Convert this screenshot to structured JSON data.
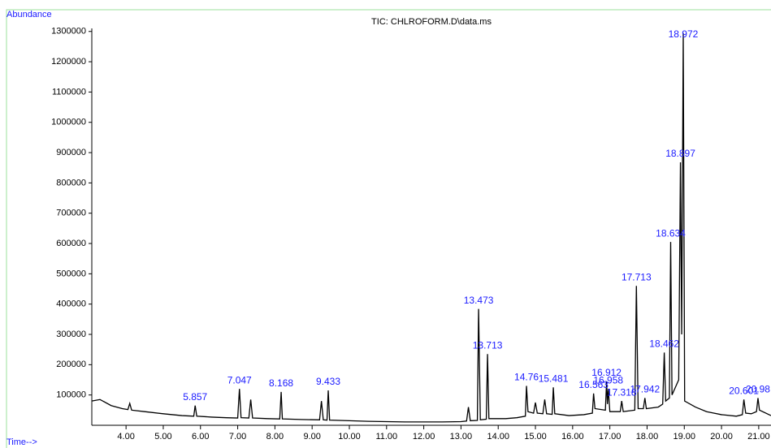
{
  "chart_data": {
    "type": "line",
    "title": "TIC: CHLROFORM.D\\data.ms",
    "y_label": "Abundance",
    "x_label": "Time-->",
    "color": "#000000",
    "label_color": "#1a1aff",
    "xlim": [
      3.08,
      21.33
    ],
    "ylim": [
      0,
      1310000
    ],
    "xticks": [
      {
        "value": 4,
        "label": "4.00"
      },
      {
        "value": 5,
        "label": "5.00"
      },
      {
        "value": 6,
        "label": "6.00"
      },
      {
        "value": 7,
        "label": "7.00"
      },
      {
        "value": 8,
        "label": "8.00"
      },
      {
        "value": 9,
        "label": "9.00"
      },
      {
        "value": 10,
        "label": "10.00"
      },
      {
        "value": 11,
        "label": "11.00"
      },
      {
        "value": 12,
        "label": "12.00"
      },
      {
        "value": 13,
        "label": "13.00"
      },
      {
        "value": 14,
        "label": "14.00"
      },
      {
        "value": 15,
        "label": "15.00"
      },
      {
        "value": 16,
        "label": "16.00"
      },
      {
        "value": 17,
        "label": "17.00"
      },
      {
        "value": 18,
        "label": "18.00"
      },
      {
        "value": 19,
        "label": "19.00"
      },
      {
        "value": 20,
        "label": "20.00"
      },
      {
        "value": 21,
        "label": "21.00"
      }
    ],
    "yticks": [
      100000,
      200000,
      300000,
      400000,
      500000,
      600000,
      700000,
      800000,
      900000,
      1000000,
      1100000,
      1200000,
      1300000
    ],
    "x": [
      3.08,
      3.3,
      3.6,
      3.9,
      4.05,
      4.1,
      4.15,
      4.5,
      5.0,
      5.5,
      5.82,
      5.857,
      5.9,
      6.3,
      6.7,
      7.0,
      7.047,
      7.09,
      7.3,
      7.35,
      7.4,
      7.8,
      8.13,
      8.168,
      8.2,
      8.7,
      9.2,
      9.25,
      9.3,
      9.4,
      9.433,
      9.47,
      10.0,
      10.5,
      11.0,
      11.5,
      12.0,
      12.5,
      13.0,
      13.15,
      13.2,
      13.25,
      13.44,
      13.473,
      13.52,
      13.68,
      13.713,
      13.75,
      14.2,
      14.5,
      14.73,
      14.76,
      14.8,
      14.95,
      15.0,
      15.05,
      15.2,
      15.25,
      15.3,
      15.45,
      15.481,
      15.52,
      15.9,
      16.3,
      16.53,
      16.563,
      16.6,
      16.88,
      16.912,
      16.935,
      16.958,
      17.0,
      17.28,
      17.318,
      17.36,
      17.67,
      17.713,
      17.76,
      17.9,
      17.942,
      17.98,
      18.3,
      18.42,
      18.462,
      18.5,
      18.6,
      18.634,
      18.67,
      18.85,
      18.897,
      18.93,
      18.972,
      19.01,
      19.3,
      19.6,
      20.0,
      20.4,
      20.56,
      20.601,
      20.65,
      20.8,
      20.94,
      20.98,
      21.02,
      21.33
    ],
    "values": [
      80000,
      85000,
      65000,
      55000,
      52000,
      72000,
      50000,
      45000,
      38000,
      32000,
      30000,
      65000,
      30000,
      27000,
      25000,
      24000,
      120000,
      25000,
      24000,
      85000,
      24000,
      22000,
      21000,
      110000,
      21000,
      19000,
      18000,
      80000,
      18000,
      17000,
      115000,
      17000,
      15000,
      13000,
      12000,
      11000,
      11000,
      11000,
      12000,
      14000,
      60000,
      15000,
      16000,
      384000,
      18000,
      20000,
      235000,
      22000,
      22000,
      25000,
      30000,
      130000,
      45000,
      40000,
      75000,
      40000,
      38000,
      85000,
      38000,
      36000,
      125000,
      38000,
      32000,
      35000,
      40000,
      105000,
      55000,
      50000,
      145000,
      70000,
      120000,
      45000,
      45000,
      80000,
      45000,
      50000,
      460000,
      55000,
      55000,
      90000,
      55000,
      60000,
      70000,
      240000,
      80000,
      90000,
      605000,
      100000,
      150000,
      868000,
      300000,
      1295000,
      80000,
      60000,
      45000,
      35000,
      30000,
      35000,
      85000,
      40000,
      38000,
      45000,
      90000,
      50000,
      32000
    ],
    "peak_labels": [
      5.857,
      7.047,
      8.168,
      9.433,
      13.473,
      13.713,
      14.76,
      15.481,
      16.563,
      16.912,
      16.958,
      17.318,
      17.713,
      17.942,
      18.462,
      18.634,
      18.897,
      18.972,
      20.601,
      20.98
    ]
  }
}
